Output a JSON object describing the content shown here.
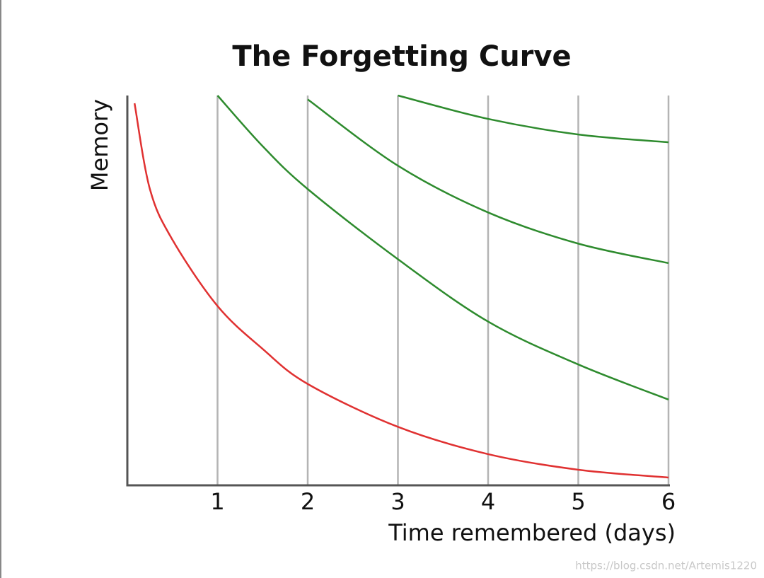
{
  "chart_data": {
    "type": "line",
    "title": "The Forgetting Curve",
    "x_label": "Time remembered (days)",
    "y_label": "Memory",
    "x": [
      0.08,
      0.25,
      0.5,
      1,
      1.5,
      2,
      3,
      4,
      5,
      6
    ],
    "series": [
      {
        "color": "#e03131",
        "values": [
          98,
          76,
          63,
          46,
          35,
          26,
          15,
          8,
          4,
          2
        ]
      },
      {
        "color": "#2e8b2e",
        "values": [
          null,
          null,
          null,
          100,
          87,
          76,
          58,
          42,
          31,
          22
        ]
      },
      {
        "color": "#2e8b2e",
        "values": [
          null,
          null,
          null,
          null,
          null,
          99,
          82,
          70,
          62,
          57
        ]
      },
      {
        "color": "#2e8b2e",
        "values": [
          null,
          null,
          null,
          null,
          null,
          null,
          100,
          94,
          90,
          88
        ]
      }
    ],
    "xlim": [
      0,
      6
    ],
    "xticks": [
      1,
      2,
      3,
      4,
      5,
      6
    ],
    "ylim": [
      0,
      100
    ],
    "grid": true
  },
  "watermark": "https://blog.csdn.net/Artemis1220"
}
